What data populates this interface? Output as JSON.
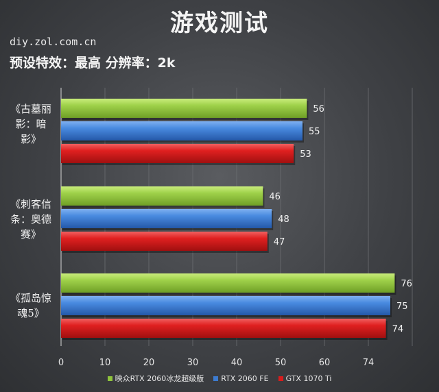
{
  "header": {
    "title": "游戏测试",
    "site": "diy.zol.com.cn",
    "subtitle": "预设特效：最高  分辨率：2k"
  },
  "colors": {
    "green": "#8fc43c",
    "blue": "#3c7bd0",
    "red": "#d81c1c"
  },
  "chart_data": {
    "type": "bar",
    "orientation": "horizontal",
    "categories": [
      "《古墓丽影：暗影》",
      "《刺客信条：奥德赛》",
      "《孤岛惊魂5》"
    ],
    "category_lines": [
      [
        "《古墓丽",
        "影：暗",
        "影》"
      ],
      [
        "《刺客信",
        "条：奥德",
        "赛》"
      ],
      [
        "《孤岛惊",
        "魂5》"
      ]
    ],
    "series": [
      {
        "name": "映众RTX 2060冰龙超级版",
        "color": "#8fc43c",
        "values": [
          56,
          46,
          76
        ]
      },
      {
        "name": "RTX 2060 FE",
        "color": "#3c7bd0",
        "values": [
          55,
          48,
          75
        ]
      },
      {
        "name": "GTX 1070 Ti",
        "color": "#d81c1c",
        "values": [
          53,
          47,
          74
        ]
      }
    ],
    "x_ticks": [
      "0",
      "10",
      "20",
      "30",
      "40",
      "50",
      "60",
      "74"
    ],
    "xlim": [
      0,
      80
    ],
    "grid": true,
    "legend_position": "bottom"
  }
}
